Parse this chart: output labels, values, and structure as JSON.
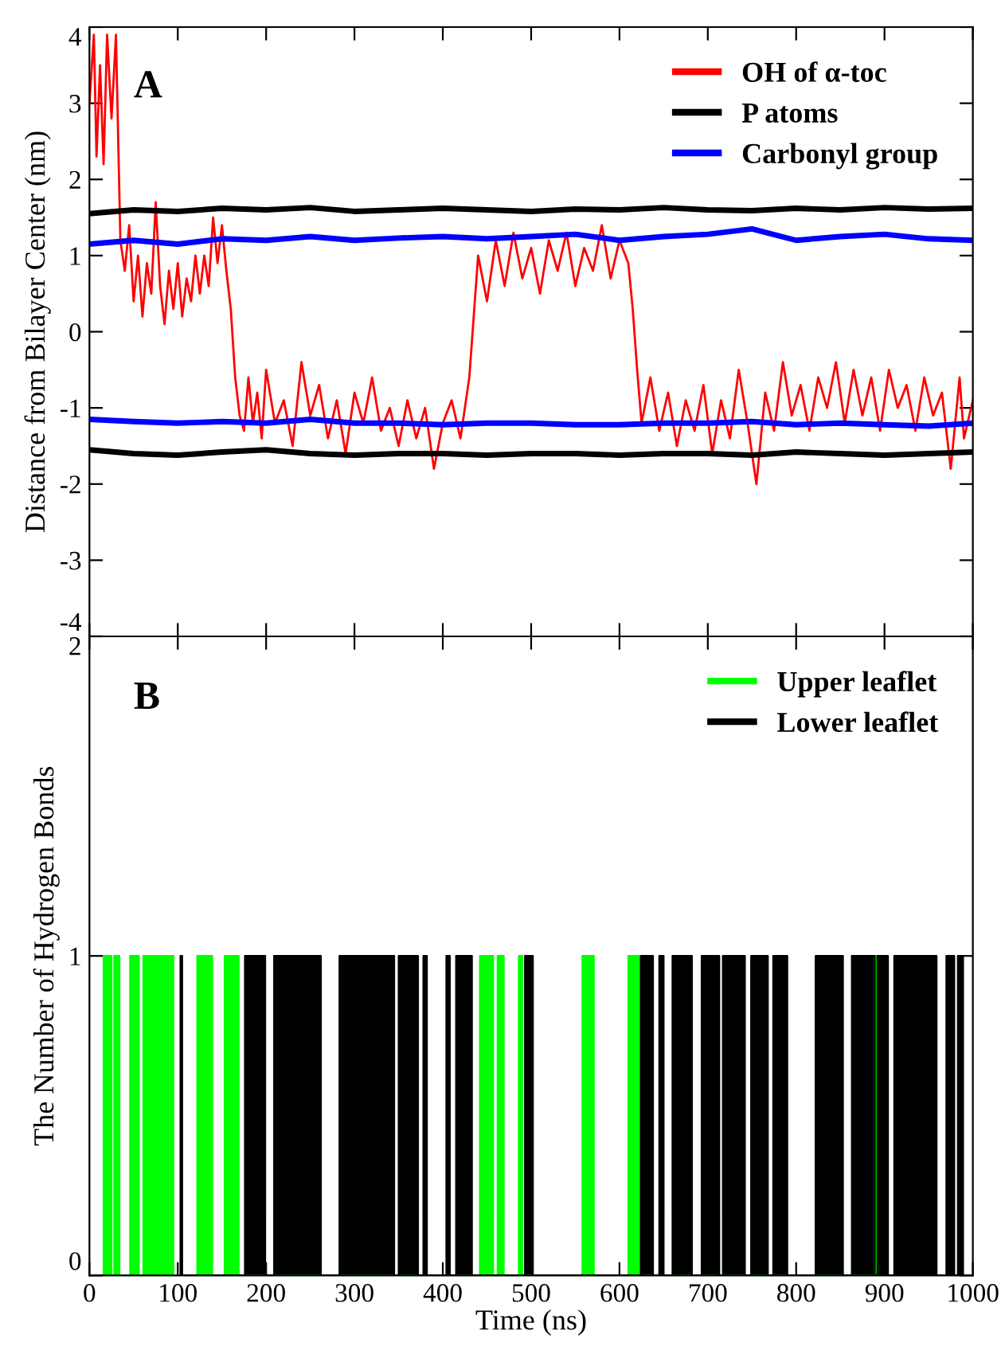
{
  "chart_data": [
    {
      "type": "line",
      "ylabel": "Distance from Bilayer Center (nm)",
      "annotations": [
        "A"
      ],
      "xlim": [
        0,
        1000
      ],
      "xticks": [
        0,
        100,
        200,
        300,
        400,
        500,
        600,
        700,
        800,
        900,
        1000
      ],
      "ylim": [
        -4,
        4
      ],
      "yticks": [
        -4,
        -3,
        -2,
        -1,
        0,
        1,
        2,
        3,
        4
      ],
      "tick_labels": "y",
      "legend": "top right",
      "grid": false,
      "series": [
        {
          "name": "OH of α-toc",
          "color": "#ff0000",
          "x": [
            0,
            5,
            8,
            12,
            16,
            20,
            25,
            30,
            35,
            40,
            45,
            50,
            55,
            60,
            65,
            70,
            75,
            80,
            85,
            90,
            95,
            100,
            105,
            110,
            115,
            120,
            125,
            130,
            135,
            140,
            145,
            150,
            155,
            160,
            165,
            170,
            175,
            180,
            185,
            190,
            195,
            200,
            210,
            220,
            230,
            240,
            250,
            260,
            270,
            280,
            290,
            300,
            310,
            320,
            330,
            340,
            350,
            360,
            370,
            380,
            390,
            400,
            410,
            420,
            430,
            435,
            440,
            450,
            460,
            470,
            480,
            490,
            500,
            510,
            520,
            530,
            540,
            550,
            560,
            570,
            580,
            590,
            600,
            610,
            615,
            620,
            625,
            635,
            645,
            655,
            665,
            675,
            685,
            695,
            705,
            715,
            725,
            735,
            745,
            755,
            765,
            775,
            785,
            795,
            805,
            815,
            825,
            835,
            845,
            855,
            865,
            875,
            885,
            895,
            905,
            915,
            925,
            935,
            945,
            955,
            965,
            975,
            985,
            990,
            1000
          ],
          "values": [
            3.0,
            3.9,
            2.3,
            3.5,
            2.2,
            3.9,
            2.8,
            3.9,
            1.2,
            0.8,
            1.4,
            0.4,
            1.0,
            0.2,
            0.9,
            0.5,
            1.7,
            0.6,
            0.1,
            0.8,
            0.3,
            0.9,
            0.2,
            0.7,
            0.4,
            1.0,
            0.5,
            1.0,
            0.6,
            1.5,
            0.9,
            1.4,
            0.8,
            0.3,
            -0.6,
            -1.1,
            -1.3,
            -0.6,
            -1.2,
            -0.8,
            -1.4,
            -0.5,
            -1.2,
            -0.9,
            -1.5,
            -0.4,
            -1.1,
            -0.7,
            -1.4,
            -0.9,
            -1.6,
            -0.8,
            -1.2,
            -0.6,
            -1.3,
            -1.0,
            -1.5,
            -0.9,
            -1.4,
            -1.0,
            -1.8,
            -1.2,
            -0.9,
            -1.4,
            -0.6,
            0.2,
            1.0,
            0.4,
            1.2,
            0.6,
            1.3,
            0.7,
            1.1,
            0.5,
            1.2,
            0.8,
            1.3,
            0.6,
            1.1,
            0.8,
            1.4,
            0.7,
            1.2,
            0.9,
            0.3,
            -0.5,
            -1.2,
            -0.6,
            -1.3,
            -0.8,
            -1.5,
            -0.9,
            -1.3,
            -0.7,
            -1.6,
            -0.9,
            -1.4,
            -0.5,
            -1.2,
            -2.0,
            -0.8,
            -1.3,
            -0.4,
            -1.1,
            -0.7,
            -1.3,
            -0.6,
            -1.0,
            -0.4,
            -1.2,
            -0.5,
            -1.1,
            -0.6,
            -1.3,
            -0.5,
            -1.0,
            -0.7,
            -1.3,
            -0.6,
            -1.1,
            -0.8,
            -1.8,
            -0.6,
            -1.4,
            -0.9
          ]
        },
        {
          "name": "P atoms",
          "color": "#000000",
          "x": [
            0,
            50,
            100,
            150,
            200,
            250,
            300,
            350,
            400,
            450,
            500,
            550,
            600,
            650,
            700,
            750,
            800,
            850,
            900,
            950,
            1000
          ],
          "values": [
            1.55,
            1.6,
            1.58,
            1.62,
            1.6,
            1.63,
            1.58,
            1.6,
            1.62,
            1.6,
            1.58,
            1.61,
            1.6,
            1.63,
            1.6,
            1.59,
            1.62,
            1.6,
            1.63,
            1.61,
            1.62
          ]
        },
        {
          "name": "Carbonyl group",
          "color": "#0000ff",
          "x": [
            0,
            50,
            100,
            150,
            200,
            250,
            300,
            350,
            400,
            450,
            500,
            550,
            600,
            650,
            700,
            750,
            800,
            850,
            900,
            950,
            1000
          ],
          "values": [
            1.15,
            1.2,
            1.15,
            1.22,
            1.2,
            1.25,
            1.2,
            1.23,
            1.25,
            1.22,
            1.25,
            1.28,
            1.2,
            1.25,
            1.28,
            1.35,
            1.2,
            1.25,
            1.28,
            1.22,
            1.2
          ]
        },
        {
          "color": "#000000",
          "x": [
            0,
            50,
            100,
            150,
            200,
            250,
            300,
            350,
            400,
            450,
            500,
            550,
            600,
            650,
            700,
            750,
            800,
            850,
            900,
            950,
            1000
          ],
          "values": [
            -1.55,
            -1.6,
            -1.62,
            -1.58,
            -1.55,
            -1.6,
            -1.62,
            -1.6,
            -1.6,
            -1.62,
            -1.6,
            -1.6,
            -1.62,
            -1.6,
            -1.6,
            -1.62,
            -1.58,
            -1.6,
            -1.62,
            -1.6,
            -1.58
          ]
        },
        {
          "color": "#0000ff",
          "x": [
            0,
            50,
            100,
            150,
            200,
            250,
            300,
            350,
            400,
            450,
            500,
            550,
            600,
            650,
            700,
            750,
            800,
            850,
            900,
            950,
            1000
          ],
          "values": [
            -1.15,
            -1.18,
            -1.2,
            -1.18,
            -1.2,
            -1.15,
            -1.2,
            -1.2,
            -1.22,
            -1.2,
            -1.2,
            -1.22,
            -1.22,
            -1.2,
            -1.2,
            -1.18,
            -1.22,
            -1.2,
            -1.22,
            -1.24,
            -1.2
          ]
        }
      ]
    },
    {
      "type": "area",
      "xlabel": "Time (ns)",
      "ylabel": "The Number of Hydrogen Bonds",
      "annotations": [
        "B"
      ],
      "xlim": [
        0,
        1000
      ],
      "xticks": [
        0,
        100,
        200,
        300,
        400,
        500,
        600,
        700,
        800,
        900,
        1000
      ],
      "ylim": [
        0,
        2
      ],
      "yticks": [
        0,
        1,
        2
      ],
      "legend": "top right",
      "grid": false,
      "series": [
        {
          "name": "Upper leaflet",
          "color": "#00ff00",
          "x": [
            16,
            16,
            25,
            25,
            28,
            28,
            34,
            34,
            46,
            46,
            56,
            56,
            61,
            61,
            73,
            73,
            75,
            75,
            95,
            95,
            122,
            122,
            139,
            139,
            153,
            153,
            169,
            169,
            442,
            442,
            457,
            457,
            462,
            462,
            469,
            469,
            486,
            486,
            490,
            490,
            558,
            558,
            571,
            571,
            610,
            610,
            622,
            622,
            889,
            889,
            892,
            892
          ],
          "values": [
            0,
            1,
            1,
            0,
            0,
            1,
            1,
            0,
            0,
            1,
            1,
            0,
            0,
            1,
            1,
            0,
            0,
            1,
            1,
            0,
            0,
            1,
            1,
            0,
            0,
            1,
            1,
            0,
            0,
            1,
            1,
            0,
            0,
            1,
            1,
            0,
            0,
            1,
            1,
            0,
            0,
            1,
            1,
            0,
            0,
            1,
            1,
            0,
            0,
            1,
            1,
            0
          ]
        },
        {
          "name": "Lower leaflet",
          "color": "#000000",
          "x": [
            103,
            103,
            105,
            105,
            176,
            176,
            199,
            199,
            209,
            209,
            262,
            262,
            283,
            283,
            345,
            345,
            350,
            350,
            372,
            372,
            378,
            378,
            382,
            382,
            404,
            404,
            408,
            408,
            415,
            415,
            433,
            433,
            493,
            493,
            502,
            502,
            624,
            624,
            638,
            638,
            645,
            645,
            650,
            650,
            660,
            660,
            682,
            682,
            693,
            693,
            713,
            713,
            717,
            717,
            742,
            742,
            749,
            749,
            768,
            768,
            774,
            774,
            790,
            790,
            822,
            822,
            853,
            853,
            863,
            863,
            889,
            889,
            892,
            892,
            904,
            904,
            911,
            911,
            959,
            959,
            970,
            970,
            979,
            979,
            983,
            983,
            989,
            989
          ],
          "values": [
            0,
            1,
            1,
            0,
            0,
            1,
            1,
            0,
            0,
            1,
            1,
            0,
            0,
            1,
            1,
            0,
            0,
            1,
            1,
            0,
            0,
            1,
            1,
            0,
            0,
            1,
            1,
            0,
            0,
            1,
            1,
            0,
            0,
            1,
            1,
            0,
            0,
            1,
            1,
            0,
            0,
            1,
            1,
            0,
            0,
            1,
            1,
            0,
            0,
            1,
            1,
            0,
            0,
            1,
            1,
            0,
            0,
            1,
            1,
            0,
            0,
            1,
            1,
            0,
            0,
            1,
            1,
            0,
            0,
            1,
            1,
            0,
            0,
            1,
            1,
            0,
            0,
            1,
            1,
            0,
            0,
            1,
            1,
            0,
            0,
            1,
            1,
            0
          ]
        }
      ]
    }
  ]
}
